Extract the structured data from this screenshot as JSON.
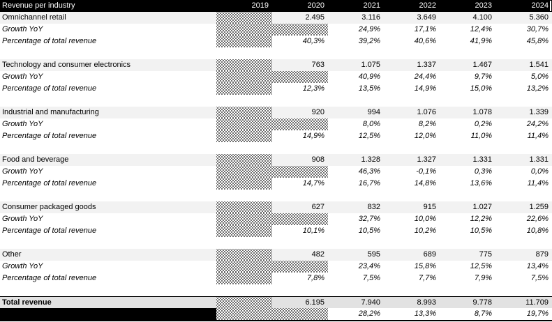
{
  "title": "Revenue per industry",
  "years": [
    "2019",
    "2020",
    "2021",
    "2022",
    "2023",
    "2024"
  ],
  "row_labels": {
    "growth": "Growth YoY",
    "pct": "Percentage of total revenue"
  },
  "sections": [
    {
      "name": "Omnichannel retail",
      "values": [
        null,
        "2.495",
        "3.116",
        "3.649",
        "4.100",
        "5.360"
      ],
      "growth": [
        null,
        null,
        "24,9%",
        "17,1%",
        "12,4%",
        "30,7%"
      ],
      "pct": [
        null,
        "40,3%",
        "39,2%",
        "40,6%",
        "41,9%",
        "45,8%"
      ]
    },
    {
      "name": "Technology and consumer electronics",
      "values": [
        null,
        "763",
        "1.075",
        "1.337",
        "1.467",
        "1.541"
      ],
      "growth": [
        null,
        null,
        "40,9%",
        "24,4%",
        "9,7%",
        "5,0%"
      ],
      "pct": [
        null,
        "12,3%",
        "13,5%",
        "14,9%",
        "15,0%",
        "13,2%"
      ]
    },
    {
      "name": "Industrial and manufacturing",
      "values": [
        null,
        "920",
        "994",
        "1.076",
        "1.078",
        "1.339"
      ],
      "growth": [
        null,
        null,
        "8,0%",
        "8,2%",
        "0,2%",
        "24,2%"
      ],
      "pct": [
        null,
        "14,9%",
        "12,5%",
        "12,0%",
        "11,0%",
        "11,4%"
      ]
    },
    {
      "name": "Food and beverage",
      "values": [
        null,
        "908",
        "1.328",
        "1.327",
        "1.331",
        "1.331"
      ],
      "growth": [
        null,
        null,
        "46,3%",
        "-0,1%",
        "0,3%",
        "0,0%"
      ],
      "pct": [
        null,
        "14,7%",
        "16,7%",
        "14,8%",
        "13,6%",
        "11,4%"
      ]
    },
    {
      "name": "Consumer packaged goods",
      "values": [
        null,
        "627",
        "832",
        "915",
        "1.027",
        "1.259"
      ],
      "growth": [
        null,
        null,
        "32,7%",
        "10,0%",
        "12,2%",
        "22,6%"
      ],
      "pct": [
        null,
        "10,1%",
        "10,5%",
        "10,2%",
        "10,5%",
        "10,8%"
      ]
    },
    {
      "name": "Other",
      "values": [
        null,
        "482",
        "595",
        "689",
        "775",
        "879"
      ],
      "growth": [
        null,
        null,
        "23,4%",
        "15,8%",
        "12,5%",
        "13,4%"
      ],
      "pct": [
        null,
        "7,8%",
        "7,5%",
        "7,7%",
        "7,9%",
        "7,5%"
      ]
    }
  ],
  "total": {
    "label": "Total revenue",
    "values": [
      null,
      "6.195",
      "7.940",
      "8.993",
      "9.778",
      "11.709"
    ],
    "growth": [
      null,
      null,
      "28,2%",
      "13,3%",
      "8,7%",
      "19,7%"
    ]
  },
  "colors": {
    "header_bg": "#000000",
    "header_text": "#ffffff",
    "section_row_bg": "#f2f2f2",
    "total_row_bg": "#e2e2e2",
    "hatch_dot": "#000000"
  }
}
